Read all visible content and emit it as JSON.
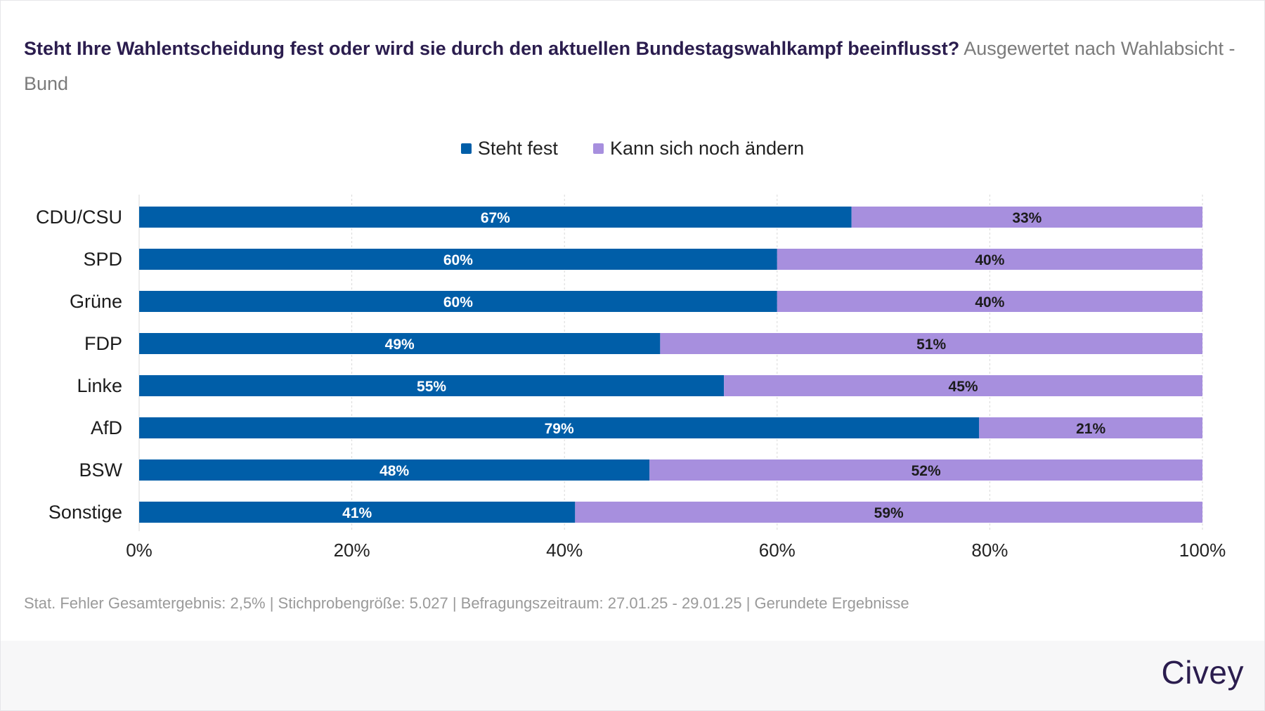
{
  "title": "Steht Ihre Wahlentscheidung fest oder wird sie durch den aktuellen Bundestagswahlkampf beeinflusst?",
  "subtitle": "Ausgewertet nach Wahlabsicht - Bund",
  "footnote": "Stat. Fehler Gesamtergebnis: 2,5% | Stichprobengröße: 5.027 | Befragungszeitraum: 27.01.25 - 29.01.25 | Gerundete Ergebnisse",
  "brand": "Civey",
  "colors": {
    "series_1": "#005ea8",
    "series_2": "#a78fde",
    "grid": "#d9d9d9"
  },
  "chart_data": {
    "type": "bar",
    "orientation": "horizontal",
    "stacked": true,
    "categories": [
      "CDU/CSU",
      "SPD",
      "Grüne",
      "FDP",
      "Linke",
      "AfD",
      "BSW",
      "Sonstige"
    ],
    "series": [
      {
        "name": "Steht fest",
        "values": [
          67,
          60,
          60,
          49,
          55,
          79,
          48,
          41
        ]
      },
      {
        "name": "Kann sich noch ändern",
        "values": [
          33,
          40,
          40,
          51,
          45,
          21,
          52,
          59
        ]
      }
    ],
    "value_format": "%",
    "xlim": [
      0,
      100
    ],
    "x_ticks": [
      0,
      20,
      40,
      60,
      80,
      100
    ],
    "x_tick_labels": [
      "0%",
      "20%",
      "40%",
      "60%",
      "80%",
      "100%"
    ],
    "grid": true,
    "legend_position": "top-center"
  }
}
